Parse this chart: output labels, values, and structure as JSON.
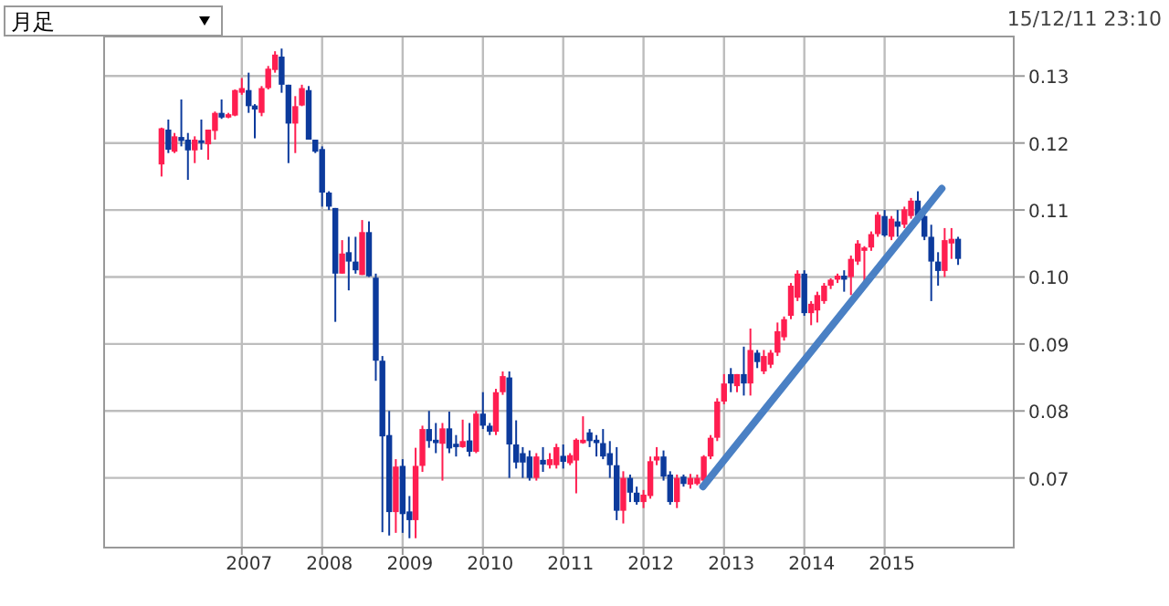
{
  "chart_data": {
    "type": "candlestick",
    "annotations": [
      "月足",
      "15/12/11 23:10"
    ],
    "xlim": [
      "2005-04-15",
      "2016-08-10"
    ],
    "xticks": [
      {
        "value": "2007-01-01",
        "label": "2007"
      },
      {
        "value": "2008-01-01",
        "label": "2008"
      },
      {
        "value": "2009-01-01",
        "label": "2009"
      },
      {
        "value": "2010-01-01",
        "label": "2010"
      },
      {
        "value": "2011-01-01",
        "label": "2011"
      },
      {
        "value": "2012-01-01",
        "label": "2012"
      },
      {
        "value": "2013-01-01",
        "label": "2013"
      },
      {
        "value": "2014-01-01",
        "label": "2014"
      },
      {
        "value": "2015-01-01",
        "label": "2015"
      }
    ],
    "ylim": [
      0.0596,
      0.1359
    ],
    "yticks": [
      {
        "value": 0.07,
        "label": "0.07"
      },
      {
        "value": 0.08,
        "label": "0.08"
      },
      {
        "value": 0.09,
        "label": "0.09"
      },
      {
        "value": 0.1,
        "label": "0.10"
      },
      {
        "value": 0.11,
        "label": "0.11"
      },
      {
        "value": 0.12,
        "label": "0.12"
      },
      {
        "value": 0.13,
        "label": "0.13"
      }
    ],
    "grid": true,
    "series": [
      {
        "colors": [
          "#ff1e50",
          "#0c3a9c",
          "#ff1e50",
          "#0c3a9c",
          "#0c3a9c",
          "#ff1e50",
          "#0c3a9c",
          "#ff1e50",
          "#ff1e50",
          "#0c3a9c",
          "#ff1e50",
          "#ff1e50",
          "#ff1e50",
          "#0c3a9c",
          "#0c3a9c",
          "#ff1e50",
          "#ff1e50",
          "#ff1e50",
          "#0c3a9c",
          "#0c3a9c",
          "#ff1e50",
          "#ff1e50",
          "#0c3a9c",
          "#0c3a9c",
          "#0c3a9c",
          "#0c3a9c",
          "#0c3a9c",
          "#ff1e50",
          "#0c3a9c",
          "#0c3a9c",
          "#ff1e50",
          "#0c3a9c",
          "#0c3a9c",
          "#0c3a9c",
          "#0c3a9c",
          "#ff1e50",
          "#0c3a9c",
          "#0c3a9c",
          "#ff1e50",
          "#ff1e50",
          "#0c3a9c",
          "#0c3a9c",
          "#ff1e50",
          "#0c3a9c",
          "#0c3a9c",
          "#ff1e50",
          "#0c3a9c",
          "#ff1e50",
          "#0c3a9c",
          "#0c3a9c",
          "#ff1e50",
          "#ff1e50",
          "#0c3a9c",
          "#0c3a9c",
          "#0c3a9c",
          "#0c3a9c",
          "#ff1e50",
          "#0c3a9c",
          "#ff1e50",
          "#ff1e50",
          "#0c3a9c",
          "#ff1e50",
          "#ff1e50",
          "#ff1e50",
          "#0c3a9c",
          "#0c3a9c",
          "#0c3a9c",
          "#0c3a9c",
          "#0c3a9c",
          "#ff1e50",
          "#0c3a9c",
          "#0c3a9c",
          "#ff1e50",
          "#ff1e50",
          "#ff1e50",
          "#0c3a9c",
          "#0c3a9c",
          "#ff1e50",
          "#0c3a9c",
          "#ff1e50",
          "#ff1e50",
          "#ff1e50",
          "#ff1e50",
          "#ff1e50",
          "#ff1e50",
          "#0c3a9c",
          "#ff1e50",
          "#0c3a9c",
          "#ff1e50",
          "#0c3a9c",
          "#ff1e50",
          "#ff1e50",
          "#ff1e50",
          "#ff1e50",
          "#ff1e50",
          "#ff1e50",
          "#0c3a9c",
          "#ff1e50",
          "#ff1e50",
          "#ff1e50",
          "#ff1e50",
          "#ff1e50",
          "#0c3a9c",
          "#ff1e50",
          "#ff1e50",
          "#ff1e50",
          "#ff1e50",
          "#ff1e50",
          "#0c3a9c",
          "#ff1e50",
          "#0c3a9c",
          "#ff1e50",
          "#ff1e50",
          "#0c3a9c",
          "#0c3a9c",
          "#0c3a9c",
          "#0c3a9c",
          "#ff1e50",
          "#ff1e50",
          "#0c3a9c"
        ],
        "x": [
          "2006-01",
          "2006-02",
          "2006-03",
          "2006-04",
          "2006-05",
          "2006-06",
          "2006-07",
          "2006-08",
          "2006-09",
          "2006-10",
          "2006-11",
          "2006-12",
          "2007-01",
          "2007-02",
          "2007-03",
          "2007-04",
          "2007-05",
          "2007-06",
          "2007-07",
          "2007-08",
          "2007-09",
          "2007-10",
          "2007-11",
          "2007-12",
          "2008-01",
          "2008-02",
          "2008-03",
          "2008-04",
          "2008-05",
          "2008-06",
          "2008-07",
          "2008-08",
          "2008-09",
          "2008-10",
          "2008-11",
          "2008-12",
          "2009-01",
          "2009-02",
          "2009-03",
          "2009-04",
          "2009-05",
          "2009-06",
          "2009-07",
          "2009-08",
          "2009-09",
          "2009-10",
          "2009-11",
          "2009-12",
          "2010-01",
          "2010-02",
          "2010-03",
          "2010-04",
          "2010-05",
          "2010-06",
          "2010-07",
          "2010-08",
          "2010-09",
          "2010-10",
          "2010-11",
          "2010-12",
          "2011-01",
          "2011-02",
          "2011-03",
          "2011-04",
          "2011-05",
          "2011-06",
          "2011-07",
          "2011-08",
          "2011-09",
          "2011-10",
          "2011-11",
          "2011-12",
          "2012-01",
          "2012-02",
          "2012-03",
          "2012-04",
          "2012-05",
          "2012-06",
          "2012-07",
          "2012-08",
          "2012-09",
          "2012-10",
          "2012-11",
          "2012-12",
          "2013-01",
          "2013-02",
          "2013-03",
          "2013-04",
          "2013-05",
          "2013-06",
          "2013-07",
          "2013-08",
          "2013-09",
          "2013-10",
          "2013-11",
          "2013-12",
          "2014-01",
          "2014-02",
          "2014-03",
          "2014-04",
          "2014-05",
          "2014-06",
          "2014-07",
          "2014-08",
          "2014-09",
          "2014-10",
          "2014-11",
          "2014-12",
          "2015-01",
          "2015-02",
          "2015-03",
          "2015-04",
          "2015-05",
          "2015-06",
          "2015-07",
          "2015-08",
          "2015-09",
          "2015-10",
          "2015-11",
          "2015-12"
        ],
        "ohlc": [
          [
            0.1168,
            0.1223,
            0.115,
            0.1222
          ],
          [
            0.122,
            0.1235,
            0.1185,
            0.119
          ],
          [
            0.1187,
            0.1215,
            0.1185,
            0.121
          ],
          [
            0.1209,
            0.1265,
            0.1195,
            0.1203
          ],
          [
            0.1205,
            0.1215,
            0.1145,
            0.1189
          ],
          [
            0.1189,
            0.121,
            0.117,
            0.1205
          ],
          [
            0.1204,
            0.1235,
            0.119,
            0.12
          ],
          [
            0.1198,
            0.122,
            0.1175,
            0.122
          ],
          [
            0.1218,
            0.1247,
            0.1205,
            0.1245
          ],
          [
            0.1245,
            0.1265,
            0.1236,
            0.1238
          ],
          [
            0.1238,
            0.1245,
            0.1237,
            0.1243
          ],
          [
            0.1241,
            0.128,
            0.124,
            0.1279
          ],
          [
            0.1275,
            0.1297,
            0.1272,
            0.1282
          ],
          [
            0.1279,
            0.1305,
            0.1245,
            0.1255
          ],
          [
            0.1256,
            0.1258,
            0.1207,
            0.125
          ],
          [
            0.1245,
            0.1285,
            0.124,
            0.1282
          ],
          [
            0.1282,
            0.1315,
            0.128,
            0.1311
          ],
          [
            0.1309,
            0.1337,
            0.1305,
            0.1332
          ],
          [
            0.1329,
            0.1341,
            0.1275,
            0.1287
          ],
          [
            0.1287,
            0.1287,
            0.117,
            0.1229
          ],
          [
            0.1229,
            0.127,
            0.1185,
            0.1255
          ],
          [
            0.1256,
            0.1287,
            0.1255,
            0.1282
          ],
          [
            0.1279,
            0.1285,
            0.1205,
            0.1205
          ],
          [
            0.1205,
            0.1205,
            0.1185,
            0.1187
          ],
          [
            0.1191,
            0.1195,
            0.1105,
            0.1126
          ],
          [
            0.1126,
            0.1128,
            0.11,
            0.1105
          ],
          [
            0.1103,
            0.1103,
            0.0933,
            0.1005
          ],
          [
            0.1005,
            0.1055,
            0.1005,
            0.1035
          ],
          [
            0.1037,
            0.106,
            0.098,
            0.1023
          ],
          [
            0.1023,
            0.106,
            0.1005,
            0.101
          ],
          [
            0.1003,
            0.1085,
            0.1003,
            0.1067
          ],
          [
            0.1067,
            0.1083,
            0.1,
            0.1001
          ],
          [
            0.0999,
            0.1005,
            0.0845,
            0.0875
          ],
          [
            0.0875,
            0.0882,
            0.0619,
            0.0762
          ],
          [
            0.0764,
            0.08,
            0.0614,
            0.0649
          ],
          [
            0.0649,
            0.0728,
            0.0618,
            0.0717
          ],
          [
            0.0718,
            0.0728,
            0.0618,
            0.0646
          ],
          [
            0.065,
            0.0673,
            0.061,
            0.0637
          ],
          [
            0.0637,
            0.0745,
            0.061,
            0.0718
          ],
          [
            0.0718,
            0.0778,
            0.0709,
            0.0773
          ],
          [
            0.0773,
            0.08,
            0.0745,
            0.0755
          ],
          [
            0.0757,
            0.0782,
            0.0737,
            0.0752
          ],
          [
            0.0751,
            0.0782,
            0.0696,
            0.0774
          ],
          [
            0.0774,
            0.0799,
            0.0737,
            0.0744
          ],
          [
            0.0751,
            0.0764,
            0.0732,
            0.0746
          ],
          [
            0.0746,
            0.0787,
            0.0745,
            0.0755
          ],
          [
            0.0756,
            0.0782,
            0.0732,
            0.0739
          ],
          [
            0.0739,
            0.08,
            0.0737,
            0.0796
          ],
          [
            0.0796,
            0.0828,
            0.0773,
            0.0778
          ],
          [
            0.0778,
            0.0782,
            0.0764,
            0.0769
          ],
          [
            0.0769,
            0.0833,
            0.0764,
            0.0828
          ],
          [
            0.0828,
            0.0859,
            0.0824,
            0.0852
          ],
          [
            0.085,
            0.0859,
            0.07,
            0.075
          ],
          [
            0.075,
            0.0786,
            0.0714,
            0.0723
          ],
          [
            0.0737,
            0.0746,
            0.07,
            0.0723
          ],
          [
            0.0732,
            0.0741,
            0.0696,
            0.07
          ],
          [
            0.07,
            0.0737,
            0.0696,
            0.0732
          ],
          [
            0.0727,
            0.0746,
            0.0709,
            0.072
          ],
          [
            0.0719,
            0.0737,
            0.0714,
            0.0728
          ],
          [
            0.0719,
            0.0751,
            0.0714,
            0.0746
          ],
          [
            0.0733,
            0.075,
            0.0714,
            0.0724
          ],
          [
            0.0722,
            0.0737,
            0.0719,
            0.0734
          ],
          [
            0.0726,
            0.0759,
            0.0677,
            0.0757
          ],
          [
            0.0752,
            0.0792,
            0.0751,
            0.0757
          ],
          [
            0.0768,
            0.0773,
            0.0746,
            0.0755
          ],
          [
            0.0757,
            0.0764,
            0.0732,
            0.0752
          ],
          [
            0.0752,
            0.0773,
            0.0728,
            0.0732
          ],
          [
            0.0737,
            0.0755,
            0.07,
            0.0719
          ],
          [
            0.0719,
            0.0746,
            0.0637,
            0.0651
          ],
          [
            0.0651,
            0.071,
            0.0632,
            0.07
          ],
          [
            0.07,
            0.0705,
            0.0664,
            0.0678
          ],
          [
            0.0678,
            0.0687,
            0.066,
            0.0664
          ],
          [
            0.0664,
            0.0682,
            0.0655,
            0.0675
          ],
          [
            0.0673,
            0.0732,
            0.0669,
            0.0725
          ],
          [
            0.0726,
            0.0746,
            0.0719,
            0.0732
          ],
          [
            0.0732,
            0.0741,
            0.0696,
            0.0702
          ],
          [
            0.0705,
            0.071,
            0.066,
            0.0664
          ],
          [
            0.0664,
            0.0705,
            0.0655,
            0.07
          ],
          [
            0.0702,
            0.0705,
            0.0687,
            0.0691
          ],
          [
            0.069,
            0.0706,
            0.0684,
            0.07
          ],
          [
            0.0691,
            0.0705,
            0.0689,
            0.07
          ],
          [
            0.0696,
            0.0734,
            0.0694,
            0.0732
          ],
          [
            0.0732,
            0.0764,
            0.0728,
            0.076
          ],
          [
            0.076,
            0.0819,
            0.0755,
            0.0814
          ],
          [
            0.0814,
            0.0855,
            0.081,
            0.0841
          ],
          [
            0.0855,
            0.0864,
            0.0828,
            0.0841
          ],
          [
            0.0837,
            0.0855,
            0.0828,
            0.0855
          ],
          [
            0.0855,
            0.0896,
            0.0823,
            0.0841
          ],
          [
            0.0841,
            0.0923,
            0.0823,
            0.0891
          ],
          [
            0.0887,
            0.0891,
            0.0864,
            0.0873
          ],
          [
            0.0859,
            0.0891,
            0.0855,
            0.0882
          ],
          [
            0.0869,
            0.0891,
            0.0864,
            0.0887
          ],
          [
            0.0887,
            0.0932,
            0.0882,
            0.0919
          ],
          [
            0.091,
            0.0941,
            0.0905,
            0.0937
          ],
          [
            0.0942,
            0.0991,
            0.0937,
            0.0987
          ],
          [
            0.0969,
            0.101,
            0.0964,
            0.1005
          ],
          [
            0.1005,
            0.101,
            0.0942,
            0.0946
          ],
          [
            0.0946,
            0.0964,
            0.0928,
            0.096
          ],
          [
            0.095,
            0.0978,
            0.0932,
            0.0973
          ],
          [
            0.0964,
            0.0991,
            0.096,
            0.0987
          ],
          [
            0.0987,
            0.0998,
            0.0982,
            0.0996
          ],
          [
            0.0996,
            0.1005,
            0.0991,
            0.1002
          ],
          [
            0.1002,
            0.101,
            0.0978,
            0.0996
          ],
          [
            0.1,
            0.1032,
            0.0973,
            0.1027
          ],
          [
            0.1023,
            0.1055,
            0.1018,
            0.105
          ],
          [
            0.1039,
            0.1046,
            0.0991,
            0.1044
          ],
          [
            0.1044,
            0.1068,
            0.1039,
            0.1064
          ],
          [
            0.1064,
            0.1097,
            0.106,
            0.1093
          ],
          [
            0.1091,
            0.11,
            0.106,
            0.1062
          ],
          [
            0.106,
            0.1091,
            0.1055,
            0.1087
          ],
          [
            0.1083,
            0.11,
            0.106,
            0.1075
          ],
          [
            0.1078,
            0.1105,
            0.1073,
            0.1101
          ],
          [
            0.1091,
            0.1118,
            0.1087,
            0.1114
          ],
          [
            0.1114,
            0.1128,
            0.1087,
            0.1091
          ],
          [
            0.1091,
            0.11,
            0.1055,
            0.106
          ],
          [
            0.106,
            0.1078,
            0.0964,
            0.1023
          ],
          [
            0.1023,
            0.1037,
            0.0987,
            0.1009
          ],
          [
            0.1009,
            0.1073,
            0.1,
            0.1055
          ],
          [
            0.105,
            0.1073,
            0.1027,
            0.1057
          ],
          [
            0.1057,
            0.106,
            0.1018,
            0.1027
          ]
        ]
      },
      {
        "type": "line",
        "color": "#4a80c4",
        "x": [
          "2012-09-27",
          "2015-09-18"
        ],
        "values": [
          0.0687,
          0.1132
        ]
      }
    ]
  }
}
